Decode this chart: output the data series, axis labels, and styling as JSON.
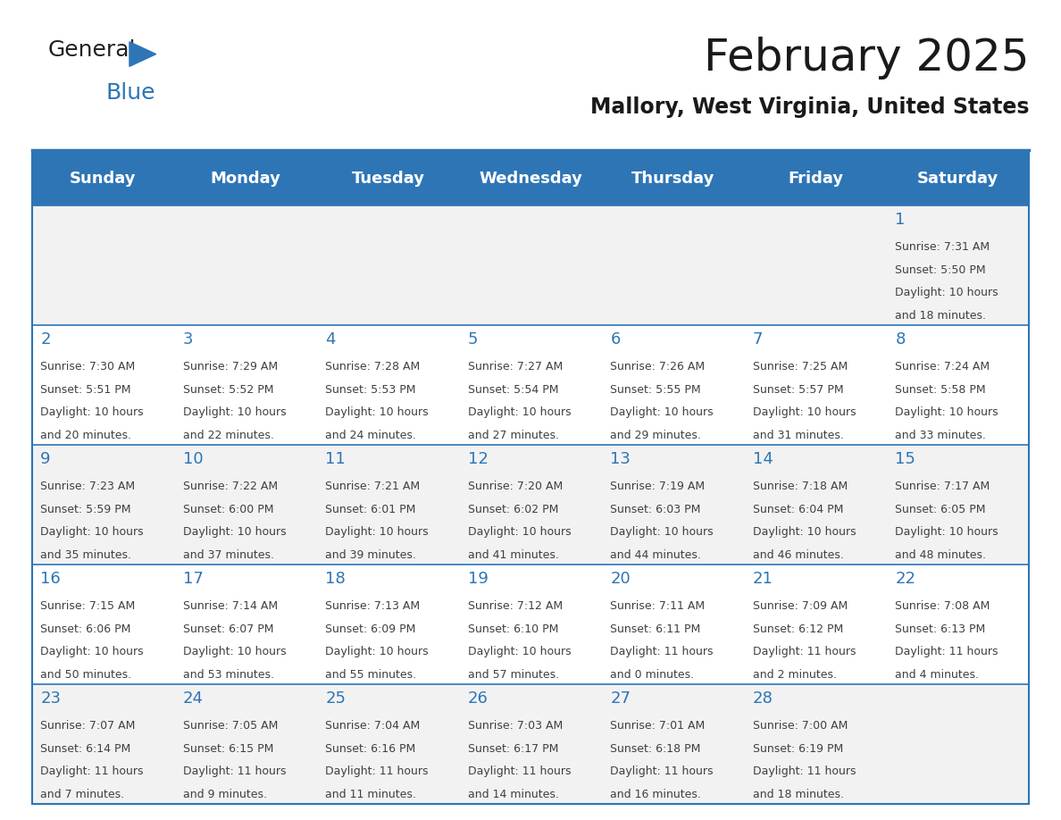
{
  "title": "February 2025",
  "subtitle": "Mallory, West Virginia, United States",
  "header_bg": "#2E75B6",
  "header_text_color": "#FFFFFF",
  "day_names": [
    "Sunday",
    "Monday",
    "Tuesday",
    "Wednesday",
    "Thursday",
    "Friday",
    "Saturday"
  ],
  "row1_bg": "#F2F2F2",
  "row2_bg": "#FFFFFF",
  "cell_border_color": "#2E75B6",
  "day_num_color": "#2E75B6",
  "day_text_color": "#404040",
  "calendar_data": [
    [
      {
        "day": "",
        "sunrise": "",
        "sunset": "",
        "daylight": ""
      },
      {
        "day": "",
        "sunrise": "",
        "sunset": "",
        "daylight": ""
      },
      {
        "day": "",
        "sunrise": "",
        "sunset": "",
        "daylight": ""
      },
      {
        "day": "",
        "sunrise": "",
        "sunset": "",
        "daylight": ""
      },
      {
        "day": "",
        "sunrise": "",
        "sunset": "",
        "daylight": ""
      },
      {
        "day": "",
        "sunrise": "",
        "sunset": "",
        "daylight": ""
      },
      {
        "day": "1",
        "sunrise": "7:31 AM",
        "sunset": "5:50 PM",
        "daylight": "10 hours\nand 18 minutes."
      }
    ],
    [
      {
        "day": "2",
        "sunrise": "7:30 AM",
        "sunset": "5:51 PM",
        "daylight": "10 hours\nand 20 minutes."
      },
      {
        "day": "3",
        "sunrise": "7:29 AM",
        "sunset": "5:52 PM",
        "daylight": "10 hours\nand 22 minutes."
      },
      {
        "day": "4",
        "sunrise": "7:28 AM",
        "sunset": "5:53 PM",
        "daylight": "10 hours\nand 24 minutes."
      },
      {
        "day": "5",
        "sunrise": "7:27 AM",
        "sunset": "5:54 PM",
        "daylight": "10 hours\nand 27 minutes."
      },
      {
        "day": "6",
        "sunrise": "7:26 AM",
        "sunset": "5:55 PM",
        "daylight": "10 hours\nand 29 minutes."
      },
      {
        "day": "7",
        "sunrise": "7:25 AM",
        "sunset": "5:57 PM",
        "daylight": "10 hours\nand 31 minutes."
      },
      {
        "day": "8",
        "sunrise": "7:24 AM",
        "sunset": "5:58 PM",
        "daylight": "10 hours\nand 33 minutes."
      }
    ],
    [
      {
        "day": "9",
        "sunrise": "7:23 AM",
        "sunset": "5:59 PM",
        "daylight": "10 hours\nand 35 minutes."
      },
      {
        "day": "10",
        "sunrise": "7:22 AM",
        "sunset": "6:00 PM",
        "daylight": "10 hours\nand 37 minutes."
      },
      {
        "day": "11",
        "sunrise": "7:21 AM",
        "sunset": "6:01 PM",
        "daylight": "10 hours\nand 39 minutes."
      },
      {
        "day": "12",
        "sunrise": "7:20 AM",
        "sunset": "6:02 PM",
        "daylight": "10 hours\nand 41 minutes."
      },
      {
        "day": "13",
        "sunrise": "7:19 AM",
        "sunset": "6:03 PM",
        "daylight": "10 hours\nand 44 minutes."
      },
      {
        "day": "14",
        "sunrise": "7:18 AM",
        "sunset": "6:04 PM",
        "daylight": "10 hours\nand 46 minutes."
      },
      {
        "day": "15",
        "sunrise": "7:17 AM",
        "sunset": "6:05 PM",
        "daylight": "10 hours\nand 48 minutes."
      }
    ],
    [
      {
        "day": "16",
        "sunrise": "7:15 AM",
        "sunset": "6:06 PM",
        "daylight": "10 hours\nand 50 minutes."
      },
      {
        "day": "17",
        "sunrise": "7:14 AM",
        "sunset": "6:07 PM",
        "daylight": "10 hours\nand 53 minutes."
      },
      {
        "day": "18",
        "sunrise": "7:13 AM",
        "sunset": "6:09 PM",
        "daylight": "10 hours\nand 55 minutes."
      },
      {
        "day": "19",
        "sunrise": "7:12 AM",
        "sunset": "6:10 PM",
        "daylight": "10 hours\nand 57 minutes."
      },
      {
        "day": "20",
        "sunrise": "7:11 AM",
        "sunset": "6:11 PM",
        "daylight": "11 hours\nand 0 minutes."
      },
      {
        "day": "21",
        "sunrise": "7:09 AM",
        "sunset": "6:12 PM",
        "daylight": "11 hours\nand 2 minutes."
      },
      {
        "day": "22",
        "sunrise": "7:08 AM",
        "sunset": "6:13 PM",
        "daylight": "11 hours\nand 4 minutes."
      }
    ],
    [
      {
        "day": "23",
        "sunrise": "7:07 AM",
        "sunset": "6:14 PM",
        "daylight": "11 hours\nand 7 minutes."
      },
      {
        "day": "24",
        "sunrise": "7:05 AM",
        "sunset": "6:15 PM",
        "daylight": "11 hours\nand 9 minutes."
      },
      {
        "day": "25",
        "sunrise": "7:04 AM",
        "sunset": "6:16 PM",
        "daylight": "11 hours\nand 11 minutes."
      },
      {
        "day": "26",
        "sunrise": "7:03 AM",
        "sunset": "6:17 PM",
        "daylight": "11 hours\nand 14 minutes."
      },
      {
        "day": "27",
        "sunrise": "7:01 AM",
        "sunset": "6:18 PM",
        "daylight": "11 hours\nand 16 minutes."
      },
      {
        "day": "28",
        "sunrise": "7:00 AM",
        "sunset": "6:19 PM",
        "daylight": "11 hours\nand 18 minutes."
      },
      {
        "day": "",
        "sunrise": "",
        "sunset": "",
        "daylight": ""
      }
    ]
  ],
  "logo_color_general": "#222222",
  "logo_color_blue": "#2E75B6"
}
